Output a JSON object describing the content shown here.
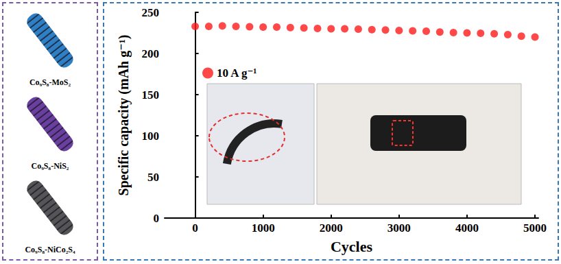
{
  "chart_data": {
    "type": "scatter",
    "x_label": "Cycles",
    "y_label": "Specific capacity (mAh g⁻¹)",
    "series": [
      {
        "name": "10 A g⁻¹",
        "color": "#ff1a1a",
        "marker": "circle",
        "x": [
          0,
          200,
          400,
          600,
          800,
          1000,
          1200,
          1400,
          1600,
          1800,
          2000,
          2200,
          2400,
          2600,
          2800,
          3000,
          3200,
          3400,
          3600,
          3800,
          4000,
          4200,
          4400,
          4600,
          4800,
          5000
        ],
        "values": [
          233,
          233,
          233.5,
          233,
          232.5,
          232,
          232,
          231.5,
          231,
          230.5,
          230,
          230,
          229.5,
          229,
          228.5,
          228,
          227.5,
          227,
          226,
          225.5,
          225,
          224.5,
          224,
          223,
          221,
          220
        ]
      }
    ],
    "xlim": [
      -450,
      5050
    ],
    "xticks": [
      0,
      1000,
      2000,
      3000,
      4000,
      5000
    ],
    "ylim": [
      0,
      250
    ],
    "yticks": [
      0,
      50,
      100,
      150,
      200,
      250
    ],
    "grid": false,
    "legend": "top-left"
  },
  "materials": [
    {
      "label": "Co₉S₈-MoS₂",
      "color": "#2f7fc4"
    },
    {
      "label": "Co₉S₈-NiS₂",
      "color": "#6a3fa0"
    },
    {
      "label": "Co₉S₈-NiCo₂S₄",
      "color": "#555555"
    }
  ]
}
